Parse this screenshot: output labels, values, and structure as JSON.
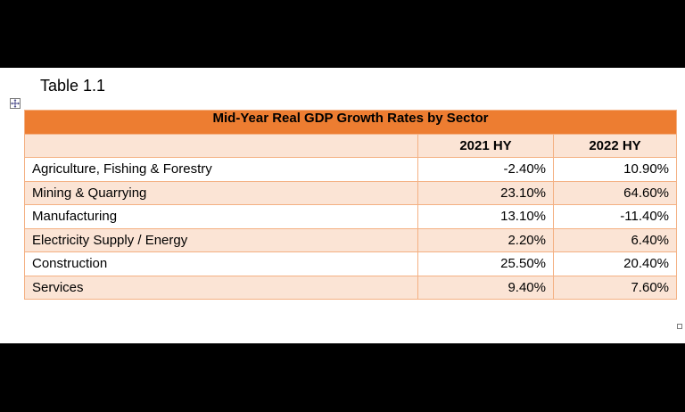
{
  "caption": "Table 1.1",
  "table": {
    "title": "Mid-Year Real GDP Growth Rates by Sector",
    "columns": [
      "",
      "2021 HY",
      "2022 HY"
    ],
    "rows": [
      {
        "sector": "Agriculture, Fishing & Forestry",
        "y2021": "-2.40%",
        "y2022": "10.90%"
      },
      {
        "sector": "Mining & Quarrying",
        "y2021": "23.10%",
        "y2022": "64.60%"
      },
      {
        "sector": "Manufacturing",
        "y2021": "13.10%",
        "y2022": "-11.40%"
      },
      {
        "sector": "Electricity Supply / Energy",
        "y2021": "2.20%",
        "y2022": "6.40%"
      },
      {
        "sector": "Construction",
        "y2021": "25.50%",
        "y2022": "20.40%"
      },
      {
        "sector": "Services",
        "y2021": "9.40%",
        "y2022": "7.60%"
      }
    ]
  },
  "icons": {
    "table_move_handle": "move-arrows-icon",
    "table_resize_handle": "resize-handle-icon"
  },
  "colors": {
    "header_fill": "#ed7d31",
    "band_fill": "#fbe4d5",
    "border": "#f4b183"
  }
}
